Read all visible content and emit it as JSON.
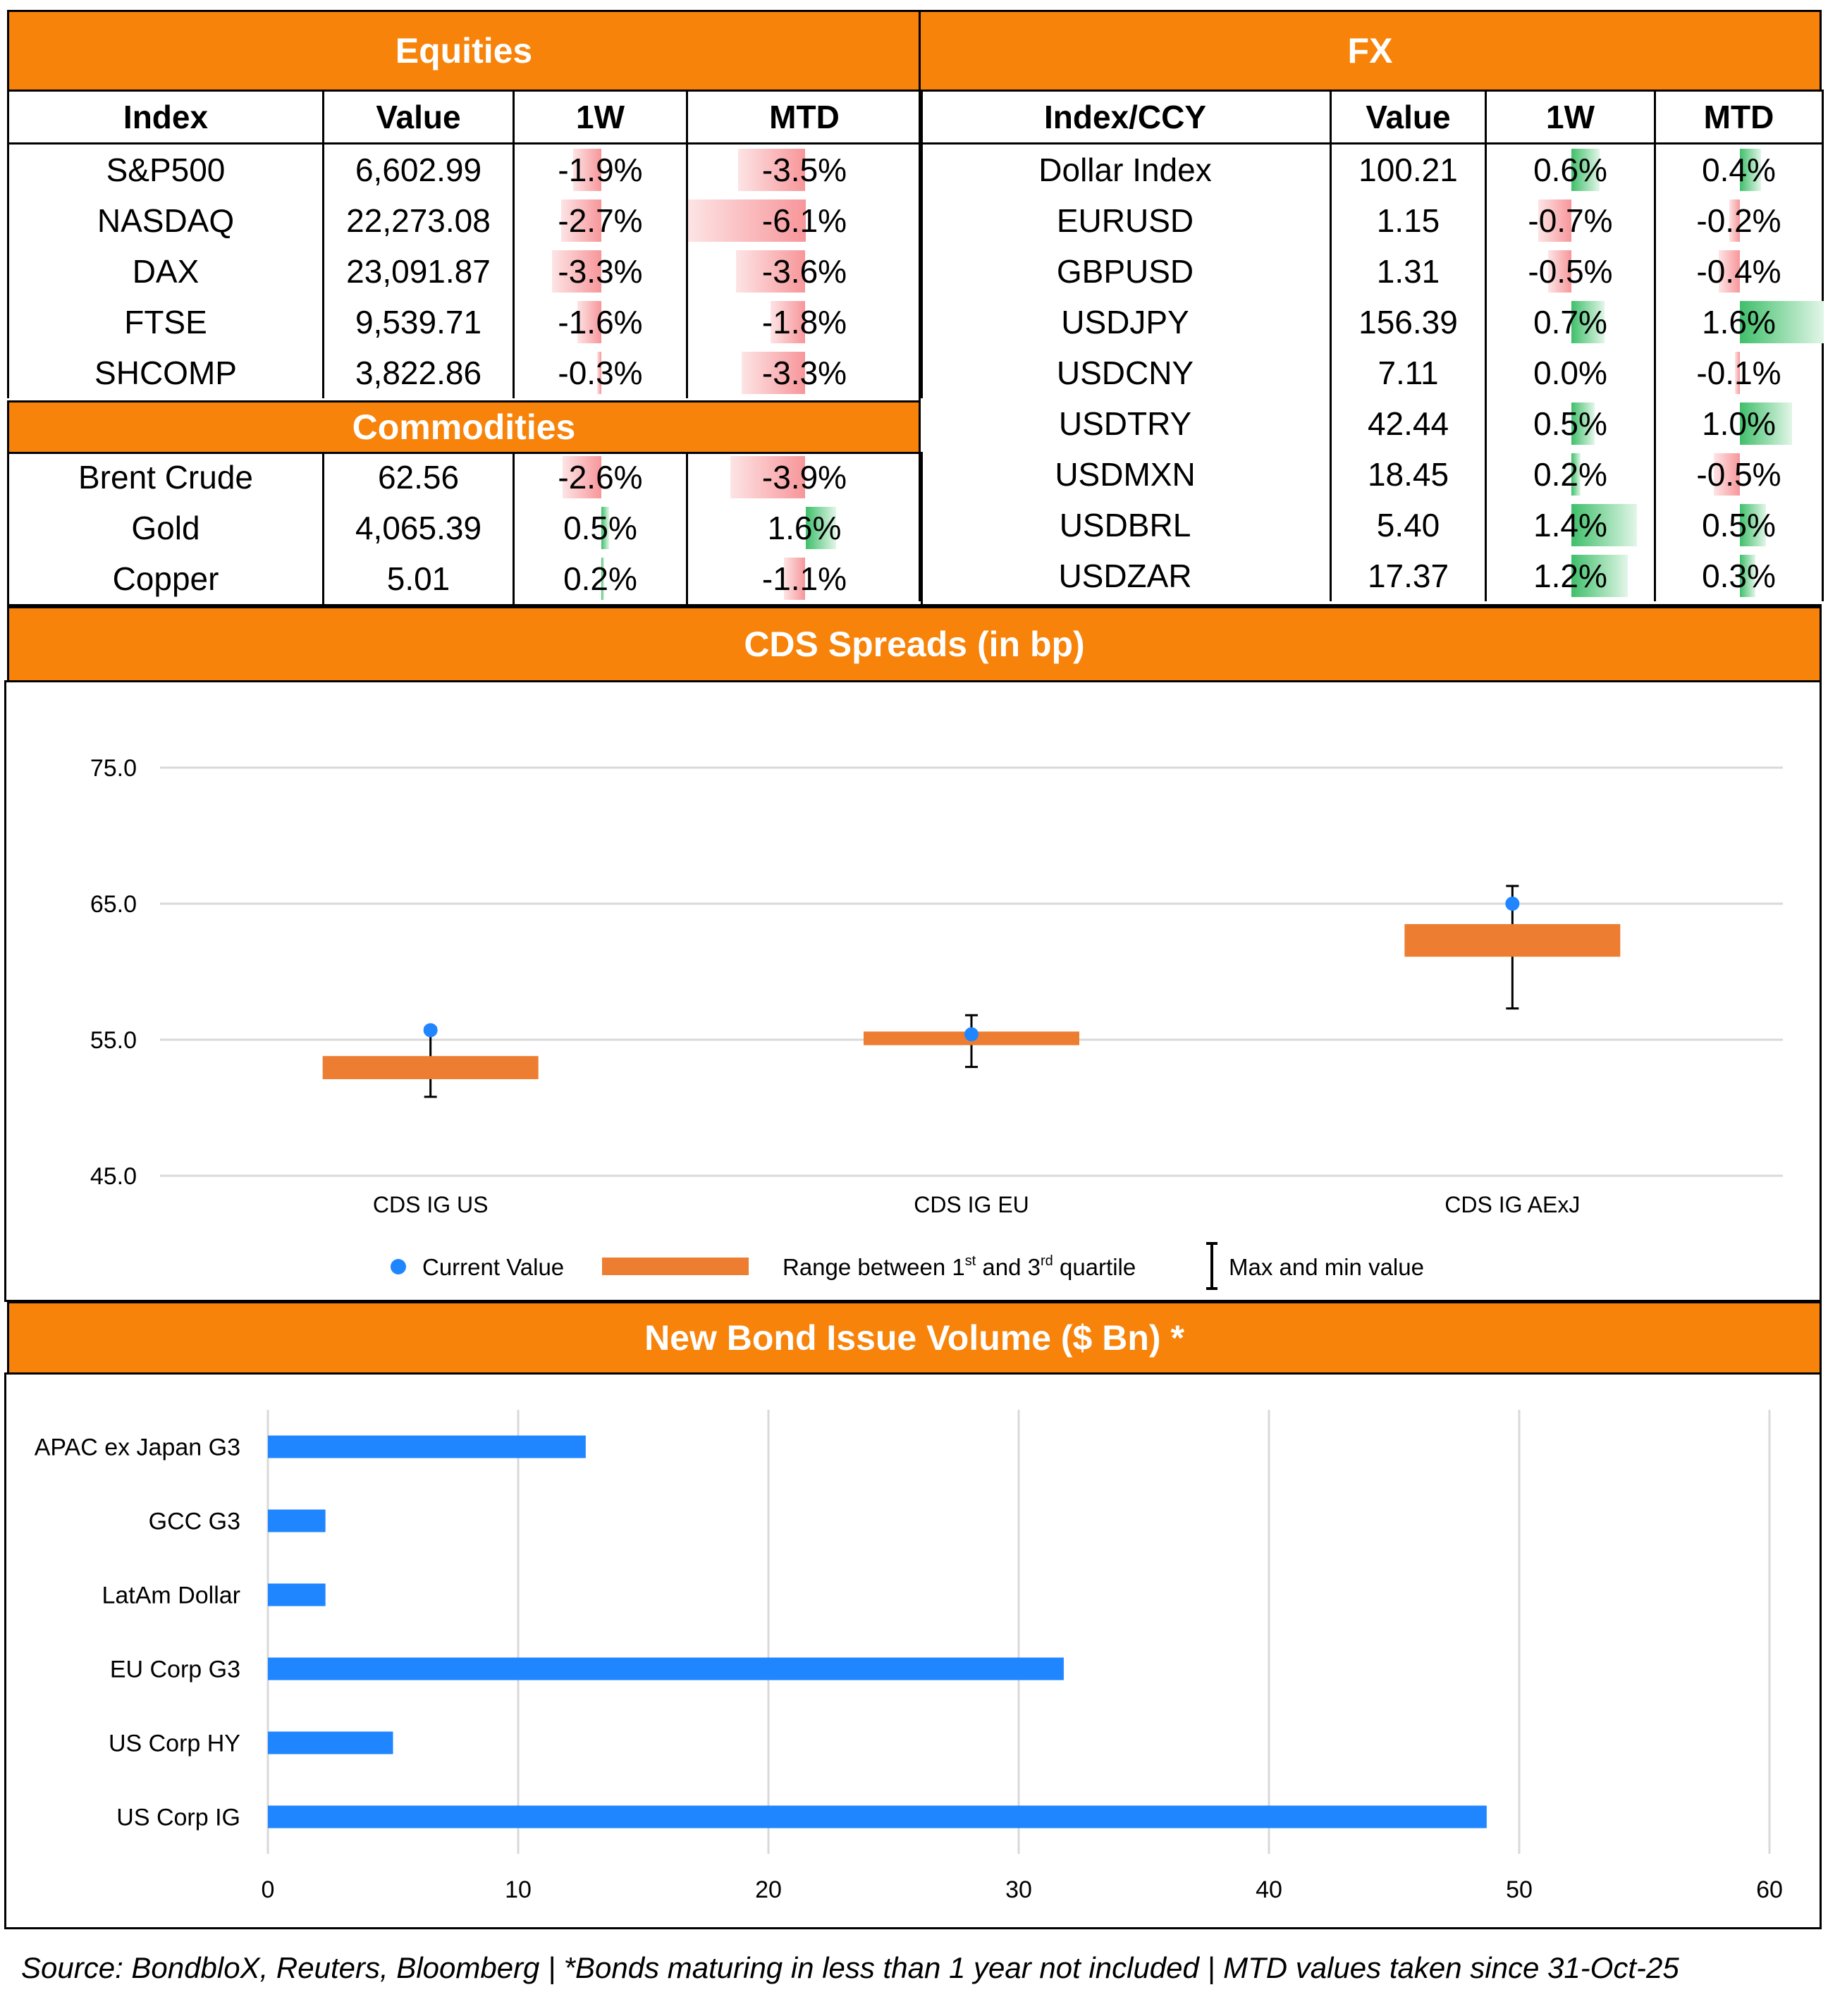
{
  "equities": {
    "title": "Equities",
    "columns": [
      "Index",
      "Value",
      "1W",
      "MTD"
    ],
    "rows": [
      {
        "index": "S&P500",
        "value": "6,602.99",
        "w1": "-1.9%",
        "mtd": "-3.5%",
        "w1_num": -1.9,
        "mtd_num": -3.5
      },
      {
        "index": "NASDAQ",
        "value": "22,273.08",
        "w1": "-2.7%",
        "mtd": "-6.1%",
        "w1_num": -2.7,
        "mtd_num": -6.1
      },
      {
        "index": "DAX",
        "value": "23,091.87",
        "w1": "-3.3%",
        "mtd": "-3.6%",
        "w1_num": -3.3,
        "mtd_num": -3.6
      },
      {
        "index": "FTSE",
        "value": "9,539.71",
        "w1": "-1.6%",
        "mtd": "-1.8%",
        "w1_num": -1.6,
        "mtd_num": -1.8
      },
      {
        "index": "SHCOMP",
        "value": "3,822.86",
        "w1": "-0.3%",
        "mtd": "-3.3%",
        "w1_num": -0.3,
        "mtd_num": -3.3
      }
    ]
  },
  "commodities": {
    "title": "Commodities",
    "rows": [
      {
        "index": "Brent Crude",
        "value": "62.56",
        "w1": "-2.6%",
        "mtd": "-3.9%",
        "w1_num": -2.6,
        "mtd_num": -3.9
      },
      {
        "index": "Gold",
        "value": "4,065.39",
        "w1": "0.5%",
        "mtd": "1.6%",
        "w1_num": 0.5,
        "mtd_num": 1.6
      },
      {
        "index": "Copper",
        "value": "5.01",
        "w1": "0.2%",
        "mtd": "-1.1%",
        "w1_num": 0.2,
        "mtd_num": -1.1
      }
    ]
  },
  "fx": {
    "title": "FX",
    "columns": [
      "Index/CCY",
      "Value",
      "1W",
      "MTD"
    ],
    "rows": [
      {
        "index": "Dollar Index",
        "value": "100.21",
        "w1": "0.6%",
        "mtd": "0.4%",
        "w1_num": 0.6,
        "mtd_num": 0.4
      },
      {
        "index": "EURUSD",
        "value": "1.15",
        "w1": "-0.7%",
        "mtd": "-0.2%",
        "w1_num": -0.7,
        "mtd_num": -0.2
      },
      {
        "index": "GBPUSD",
        "value": "1.31",
        "w1": "-0.5%",
        "mtd": "-0.4%",
        "w1_num": -0.5,
        "mtd_num": -0.4
      },
      {
        "index": "USDJPY",
        "value": "156.39",
        "w1": "0.7%",
        "mtd": "1.6%",
        "w1_num": 0.7,
        "mtd_num": 1.6
      },
      {
        "index": "USDCNY",
        "value": "7.11",
        "w1": "0.0%",
        "mtd": "-0.1%",
        "w1_num": 0.0,
        "mtd_num": -0.1
      },
      {
        "index": "USDTRY",
        "value": "42.44",
        "w1": "0.5%",
        "mtd": "1.0%",
        "w1_num": 0.5,
        "mtd_num": 1.0
      },
      {
        "index": "USDMXN",
        "value": "18.45",
        "w1": "0.2%",
        "mtd": "-0.5%",
        "w1_num": 0.2,
        "mtd_num": -0.5
      },
      {
        "index": "USDBRL",
        "value": "5.40",
        "w1": "1.4%",
        "mtd": "0.5%",
        "w1_num": 1.4,
        "mtd_num": 0.5
      },
      {
        "index": "USDZAR",
        "value": "17.37",
        "w1": "1.2%",
        "mtd": "0.3%",
        "w1_num": 1.2,
        "mtd_num": 0.3
      }
    ]
  },
  "colors": {
    "accent": "#f7830a",
    "box": "#ed7d31",
    "point": "#1f86ff",
    "bar": "#1f86ff",
    "neg": "#f7969a",
    "pos": "#3fbf6a"
  },
  "cds": {
    "title": "CDS Spreads (in bp)"
  },
  "bonds": {
    "title": "New Bond Issue Volume ($ Bn) *"
  },
  "chart_data": [
    {
      "type": "box",
      "title": "CDS Spreads (in bp)",
      "ylim": [
        45,
        75
      ],
      "yticks": [
        "45.0",
        "55.0",
        "65.0",
        "75.0"
      ],
      "categories": [
        "CDS IG US",
        "CDS IG EU",
        "CDS IG AExJ"
      ],
      "current": [
        55.7,
        55.4,
        65.0
      ],
      "q1": [
        52.1,
        54.6,
        61.1
      ],
      "q3": [
        53.8,
        55.6,
        63.5
      ],
      "min": [
        50.8,
        53.0,
        57.3
      ],
      "max": [
        55.9,
        56.8,
        66.3
      ],
      "legend": {
        "current": "Current Value",
        "range_pre": "Range between 1",
        "range_sup1": "st",
        "range_mid": " and 3",
        "range_sup2": "rd",
        "range_post": " quartile",
        "minmax": "Max and min value"
      }
    },
    {
      "type": "bar",
      "orientation": "horizontal",
      "title": "New Bond Issue Volume ($ Bn) *",
      "categories": [
        "APAC ex Japan G3",
        "GCC G3",
        "LatAm Dollar",
        "EU Corp G3",
        "US Corp HY",
        "US Corp IG"
      ],
      "values": [
        12.7,
        2.3,
        2.3,
        31.8,
        5.0,
        48.7
      ],
      "xlim": [
        0,
        60
      ],
      "xticks": [
        "0",
        "10",
        "20",
        "30",
        "40",
        "50",
        "60"
      ]
    }
  ],
  "footer": "Source: BondbloX, Reuters, Bloomberg | *Bonds maturing in less than 1 year not included | MTD values taken since 31-Oct-25"
}
